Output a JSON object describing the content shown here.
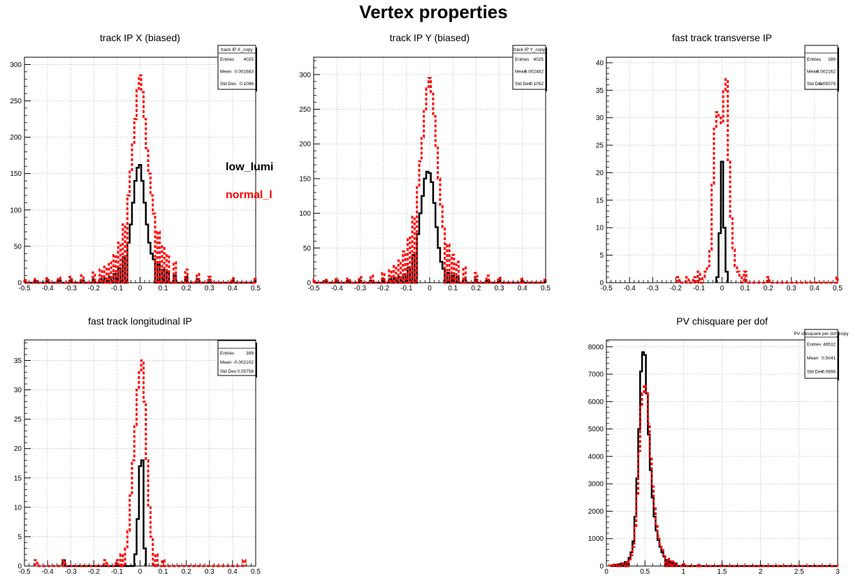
{
  "page": {
    "title": "Vertex properties"
  },
  "legend": [
    {
      "label": "low_lumi",
      "color": "#000000"
    },
    {
      "label": "normal_l",
      "color": "#ff0000"
    }
  ],
  "chart_data": [
    {
      "type": "histogram",
      "title": "track IP X (biased)",
      "xlim": [
        -0.5,
        0.5
      ],
      "ylim": [
        0,
        310
      ],
      "xticks": [
        -0.5,
        -0.4,
        -0.3,
        -0.2,
        -0.1,
        0,
        0.1,
        0.2,
        0.3,
        0.4,
        0.5
      ],
      "xtick_labels": [
        "-0.5",
        "-0.4",
        "-0.3",
        "-0.2",
        "-0.1",
        "0",
        "0.1",
        "0.2",
        "0.3",
        "0.4",
        "0.5"
      ],
      "yticks": [
        0,
        50,
        100,
        150,
        200,
        250,
        300
      ],
      "ytick_labels": [
        "0",
        "50",
        "100",
        "150",
        "200",
        "250",
        "300"
      ],
      "stats": {
        "name": "track IP X_copy",
        "rows": [
          [
            "Entries",
            "4025"
          ],
          [
            "Mean",
            "0.001683"
          ],
          [
            "Std Dev",
            "0.1096"
          ]
        ]
      },
      "series": [
        {
          "color": "#000000",
          "style": "solid",
          "bin_width": 0.01,
          "x": [
            -0.5,
            -0.45,
            -0.4,
            -0.35,
            -0.3,
            -0.25,
            -0.2,
            -0.17,
            -0.15,
            -0.13,
            -0.11,
            -0.09,
            -0.07,
            -0.05,
            -0.04,
            -0.03,
            -0.02,
            -0.01,
            0,
            0.01,
            0.02,
            0.03,
            0.04,
            0.05,
            0.06,
            0.08,
            0.1,
            0.12,
            0.15,
            0.2,
            0.25,
            0.3,
            0.4,
            0.5
          ],
          "y": [
            2,
            2,
            2,
            3,
            3,
            3,
            4,
            5,
            6,
            8,
            12,
            20,
            35,
            55,
            80,
            110,
            140,
            158,
            162,
            140,
            110,
            80,
            55,
            40,
            32,
            25,
            18,
            14,
            10,
            8,
            5,
            4,
            3,
            2
          ]
        },
        {
          "color": "#ff0000",
          "style": "dashed",
          "bin_width": 0.01,
          "x": [
            -0.5,
            -0.45,
            -0.4,
            -0.35,
            -0.3,
            -0.25,
            -0.2,
            -0.17,
            -0.15,
            -0.13,
            -0.11,
            -0.09,
            -0.07,
            -0.05,
            -0.04,
            -0.03,
            -0.02,
            -0.01,
            0,
            0.01,
            0.02,
            0.03,
            0.04,
            0.05,
            0.06,
            0.08,
            0.1,
            0.12,
            0.15,
            0.2,
            0.25,
            0.3,
            0.4,
            0.5
          ],
          "y": [
            5,
            5,
            6,
            7,
            8,
            10,
            14,
            18,
            22,
            28,
            38,
            55,
            80,
            120,
            155,
            190,
            225,
            265,
            285,
            262,
            225,
            185,
            150,
            120,
            95,
            70,
            50,
            38,
            28,
            18,
            12,
            8,
            6,
            5
          ]
        }
      ]
    },
    {
      "type": "histogram",
      "title": "track IP Y (biased)",
      "xlim": [
        -0.5,
        0.5
      ],
      "ylim": [
        0,
        325
      ],
      "xticks": [
        -0.5,
        -0.4,
        -0.3,
        -0.2,
        -0.1,
        0,
        0.1,
        0.2,
        0.3,
        0.4,
        0.5
      ],
      "xtick_labels": [
        "-0.5",
        "-0.4",
        "-0.3",
        "-0.2",
        "-0.1",
        "0",
        "0.1",
        "0.2",
        "0.3",
        "0.4",
        "0.5"
      ],
      "yticks": [
        0,
        50,
        100,
        150,
        200,
        250,
        300
      ],
      "ytick_labels": [
        "0",
        "50",
        "100",
        "150",
        "200",
        "250",
        "300"
      ],
      "stats": {
        "name": "track IP Y_copy",
        "rows": [
          [
            "Entries",
            "4025"
          ],
          [
            "Mean",
            "0.002482"
          ],
          [
            "Std Dev",
            "0.1052"
          ]
        ]
      },
      "series": [
        {
          "color": "#000000",
          "style": "solid",
          "bin_width": 0.01,
          "x": [
            -0.5,
            -0.45,
            -0.4,
            -0.35,
            -0.3,
            -0.25,
            -0.2,
            -0.17,
            -0.15,
            -0.13,
            -0.11,
            -0.09,
            -0.07,
            -0.05,
            -0.04,
            -0.03,
            -0.02,
            -0.01,
            0,
            0.01,
            0.02,
            0.03,
            0.04,
            0.05,
            0.06,
            0.08,
            0.1,
            0.12,
            0.15,
            0.2,
            0.25,
            0.3,
            0.4,
            0.5
          ],
          "y": [
            2,
            2,
            2,
            2,
            3,
            3,
            4,
            5,
            6,
            8,
            12,
            22,
            40,
            70,
            100,
            125,
            150,
            160,
            158,
            145,
            115,
            80,
            50,
            30,
            20,
            14,
            10,
            8,
            6,
            4,
            3,
            3,
            2,
            2
          ]
        },
        {
          "color": "#ff0000",
          "style": "dashed",
          "bin_width": 0.01,
          "x": [
            -0.5,
            -0.45,
            -0.4,
            -0.35,
            -0.3,
            -0.25,
            -0.2,
            -0.17,
            -0.15,
            -0.13,
            -0.11,
            -0.09,
            -0.07,
            -0.05,
            -0.04,
            -0.03,
            -0.02,
            -0.01,
            0,
            0.01,
            0.02,
            0.03,
            0.04,
            0.05,
            0.06,
            0.08,
            0.1,
            0.12,
            0.15,
            0.2,
            0.25,
            0.3,
            0.4,
            0.5
          ],
          "y": [
            4,
            4,
            5,
            6,
            8,
            10,
            14,
            18,
            24,
            32,
            45,
            65,
            95,
            140,
            175,
            210,
            250,
            280,
            295,
            275,
            240,
            195,
            150,
            110,
            80,
            55,
            40,
            30,
            22,
            14,
            10,
            7,
            5,
            4
          ]
        }
      ]
    },
    {
      "type": "histogram",
      "title": "fast track transverse IP",
      "xlim": [
        -0.5,
        0.5
      ],
      "ylim": [
        0,
        41
      ],
      "xticks": [
        -0.5,
        -0.4,
        -0.3,
        -0.2,
        -0.1,
        0,
        0.1,
        0.2,
        0.3,
        0.4,
        0.5
      ],
      "xtick_labels": [
        "-0.5",
        "-0.4",
        "-0.3",
        "-0.2",
        "-0.1",
        "0",
        "0.1",
        "0.2",
        "0.3",
        "0.4",
        "0.5"
      ],
      "yticks": [
        0,
        5,
        10,
        15,
        20,
        25,
        30,
        35,
        40
      ],
      "ytick_labels": [
        "0",
        "5",
        "10",
        "15",
        "20",
        "25",
        "30",
        "35",
        "40"
      ],
      "stats": {
        "name": "",
        "rows": [
          [
            "Entries",
            "399"
          ],
          [
            "Mean",
            "0.002162"
          ],
          [
            "Std Dev",
            "0.05079"
          ]
        ]
      },
      "series": [
        {
          "color": "#000000",
          "style": "solid",
          "bin_width": 0.01,
          "x": [
            -0.02,
            -0.01,
            0,
            0.01,
            0.02
          ],
          "y": [
            1,
            9,
            22,
            10,
            2
          ]
        },
        {
          "color": "#ff0000",
          "style": "dashed",
          "bin_width": 0.01,
          "x": [
            -0.19,
            -0.15,
            -0.12,
            -0.1,
            -0.08,
            -0.07,
            -0.06,
            -0.05,
            -0.04,
            -0.03,
            -0.02,
            -0.01,
            0,
            0.01,
            0.02,
            0.03,
            0.04,
            0.05,
            0.06,
            0.07,
            0.08,
            0.1,
            0.2,
            0.5
          ],
          "y": [
            1,
            1,
            1,
            2,
            1,
            2,
            3,
            6,
            18,
            28,
            31,
            30,
            29,
            35,
            37,
            22,
            12,
            6,
            3,
            2,
            1,
            2,
            1,
            1
          ]
        }
      ]
    },
    {
      "type": "histogram",
      "title": "fast track longitudinal IP",
      "xlim": [
        -0.5,
        0.5
      ],
      "ylim": [
        0,
        38.5
      ],
      "xticks": [
        -0.5,
        -0.4,
        -0.3,
        -0.2,
        -0.1,
        0,
        0.1,
        0.2,
        0.3,
        0.4,
        0.5
      ],
      "xtick_labels": [
        "-0.5",
        "-0.4",
        "-0.3",
        "-0.2",
        "-0.1",
        "0",
        "0.1",
        "0.2",
        "0.3",
        "0.4",
        "0.5"
      ],
      "yticks": [
        0,
        5,
        10,
        15,
        20,
        25,
        30,
        35
      ],
      "ytick_labels": [
        "0",
        "5",
        "10",
        "15",
        "20",
        "25",
        "30",
        "35"
      ],
      "stats": {
        "name": "",
        "rows": [
          [
            "Entries",
            "399"
          ],
          [
            "Mean",
            "-0.002102"
          ],
          [
            "Std Dev",
            "0.05758"
          ]
        ]
      },
      "series": [
        {
          "color": "#000000",
          "style": "solid",
          "bin_width": 0.01,
          "x": [
            -0.33,
            -0.02,
            -0.01,
            0,
            0.01,
            0.02
          ],
          "y": [
            1,
            2,
            8,
            17,
            18,
            3
          ]
        },
        {
          "color": "#ff0000",
          "style": "dashed",
          "bin_width": 0.01,
          "x": [
            -0.45,
            -0.33,
            -0.15,
            -0.1,
            -0.08,
            -0.06,
            -0.05,
            -0.04,
            -0.03,
            -0.02,
            -0.01,
            0,
            0.01,
            0.02,
            0.03,
            0.04,
            0.05,
            0.07,
            0.1,
            0.45
          ],
          "y": [
            1,
            1,
            1,
            1,
            2,
            3,
            6,
            12,
            18,
            24,
            30,
            33,
            35,
            28,
            18,
            10,
            5,
            2,
            1,
            1
          ]
        }
      ]
    },
    {
      "type": "histogram",
      "title": "PV chisquare per dof",
      "xlim": [
        0,
        3
      ],
      "ylim": [
        0,
        8250
      ],
      "xticks": [
        0,
        0.5,
        1,
        1.5,
        2,
        2.5,
        3
      ],
      "xtick_labels": [
        "0",
        "0.5",
        "1",
        "1.5",
        "2",
        "2.5",
        "3"
      ],
      "yticks": [
        0,
        1000,
        2000,
        3000,
        4000,
        5000,
        6000,
        7000,
        8000
      ],
      "ytick_labels": [
        "0",
        "1000",
        "2000",
        "3000",
        "4000",
        "5000",
        "6000",
        "7000",
        "8000"
      ],
      "stats": {
        "name": "PV chisquare per dof_copy",
        "rows": [
          [
            "Entries",
            "49532"
          ],
          [
            "Mean",
            "0.5041"
          ],
          [
            "Std Dev",
            "0.0898"
          ]
        ]
      },
      "series": [
        {
          "color": "#000000",
          "style": "solid",
          "bin_width": 0.025,
          "x": [
            0.05,
            0.1,
            0.15,
            0.2,
            0.25,
            0.3,
            0.325,
            0.35,
            0.375,
            0.4,
            0.425,
            0.45,
            0.475,
            0.5,
            0.525,
            0.55,
            0.575,
            0.6,
            0.625,
            0.65,
            0.675,
            0.7,
            0.725,
            0.75,
            0.8,
            0.85,
            0.9,
            1,
            1.2,
            1.5,
            2,
            3
          ],
          "y": [
            20,
            40,
            60,
            100,
            150,
            300,
            500,
            900,
            1800,
            3200,
            5000,
            7100,
            7800,
            7700,
            6300,
            4800,
            3500,
            2500,
            1800,
            1300,
            950,
            700,
            500,
            350,
            220,
            140,
            90,
            50,
            20,
            10,
            5,
            2
          ]
        },
        {
          "color": "#ff0000",
          "style": "dashed",
          "bin_width": 0.025,
          "x": [
            0.05,
            0.1,
            0.15,
            0.2,
            0.25,
            0.3,
            0.325,
            0.35,
            0.375,
            0.4,
            0.425,
            0.45,
            0.475,
            0.5,
            0.525,
            0.55,
            0.575,
            0.6,
            0.625,
            0.65,
            0.675,
            0.7,
            0.725,
            0.75,
            0.8,
            0.85,
            0.9,
            1,
            1.2,
            1.5,
            2,
            3
          ],
          "y": [
            20,
            30,
            50,
            80,
            130,
            250,
            400,
            700,
            1400,
            2600,
            4200,
            5800,
            6300,
            6600,
            6300,
            5200,
            4000,
            2900,
            2100,
            1500,
            1100,
            800,
            580,
            400,
            260,
            170,
            110,
            60,
            25,
            12,
            6,
            3
          ]
        }
      ]
    }
  ]
}
